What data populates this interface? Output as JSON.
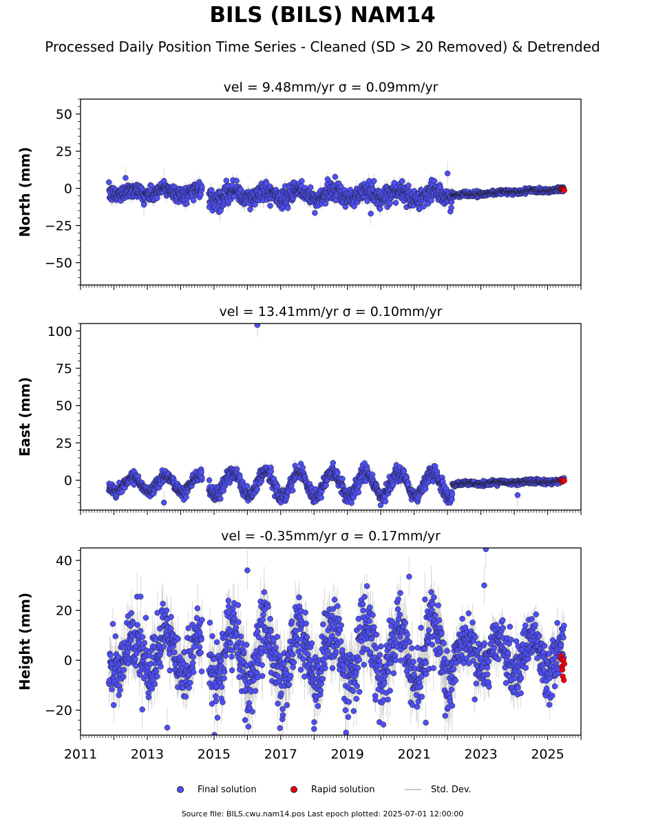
{
  "title": "BILS (BILS) NAM14",
  "subtitle": "Processed Daily Position Time Series - Cleaned (SD > 20 Removed) & Detrended",
  "footer": "Source file: BILS.cwu.nam14.pos  Last epoch plotted: 2025-07-01 12:00:00",
  "legend": {
    "final_label": "Final solution",
    "rapid_label": "Rapid solution",
    "std_label": "Std. Dev."
  },
  "colors": {
    "final": "#4f4ff5",
    "rapid": "#e8000b",
    "std": "#b8b8b8",
    "edge": "#1a1a1a"
  },
  "chart_data": [
    {
      "type": "scatter",
      "panel": "north",
      "title": "vel = 9.48mm/yr   σ = 0.09mm/yr",
      "ylabel": "North (mm)",
      "xlim": [
        2011,
        2026
      ],
      "ylim": [
        -65,
        60
      ],
      "yticks": [
        -50,
        -25,
        0,
        25,
        50
      ],
      "ytick_labels": [
        "−50",
        "−25",
        "0",
        "25",
        "50"
      ],
      "segments": [
        {
          "start": 2011.85,
          "end": 2014.65,
          "mean": -2.5,
          "amp": 2,
          "noise": 2.6,
          "sd": 3
        },
        {
          "start": 2014.85,
          "end": 2022.15,
          "mean": -4.5,
          "amp": 3,
          "noise": 3.2,
          "sd": 3.5
        },
        {
          "start": 2022.15,
          "end": 2025.5,
          "mean": -4.5,
          "amp": 0.5,
          "noise": 0.9,
          "sd": 1.2,
          "trend_end": -0.5
        }
      ],
      "outliers": [
        {
          "x": 2012.35,
          "y": 7
        },
        {
          "x": 2013.5,
          "y": 5
        },
        {
          "x": 2022.0,
          "y": 10
        },
        {
          "x": 2012.9,
          "y": -11
        },
        {
          "x": 2015.2,
          "y": -15
        },
        {
          "x": 2019.7,
          "y": -17
        }
      ],
      "rapid": {
        "start": 2025.4,
        "end": 2025.5,
        "y": -0.7,
        "spread": 0.8
      }
    },
    {
      "type": "scatter",
      "panel": "east",
      "title": "vel = 13.41mm/yr   σ = 0.10mm/yr",
      "ylabel": "East (mm)",
      "xlim": [
        2011,
        2026
      ],
      "ylim": [
        -20,
        105
      ],
      "yticks": [
        0,
        25,
        50,
        75,
        100
      ],
      "ytick_labels": [
        "0",
        "25",
        "50",
        "75",
        "100"
      ],
      "segments": [
        {
          "start": 2011.85,
          "end": 2014.65,
          "mean": -2.5,
          "amp": 5,
          "noise": 2.2,
          "sd": 2.5
        },
        {
          "start": 2014.85,
          "end": 2022.15,
          "mean": -2.5,
          "amp": 8,
          "noise": 2.4,
          "sd": 3
        },
        {
          "start": 2022.15,
          "end": 2025.5,
          "mean": -2.5,
          "amp": 0.4,
          "noise": 0.8,
          "sd": 1,
          "trend_end": -0.5
        }
      ],
      "outliers": [
        {
          "x": 2016.3,
          "y": 104
        },
        {
          "x": 2024.1,
          "y": -10
        },
        {
          "x": 2013.5,
          "y": -15
        }
      ],
      "rapid": {
        "start": 2025.4,
        "end": 2025.5,
        "y": -0.5,
        "spread": 0.6
      }
    },
    {
      "type": "scatter",
      "panel": "height",
      "title": "vel = -0.35mm/yr   σ = 0.17mm/yr",
      "ylabel": "Height (mm)",
      "xlim": [
        2011,
        2026
      ],
      "ylim": [
        -30,
        45
      ],
      "xticks": [
        2011,
        2013,
        2015,
        2017,
        2019,
        2021,
        2023,
        2025
      ],
      "xtick_labels": [
        "2011",
        "2013",
        "2015",
        "2017",
        "2019",
        "2021",
        "2023",
        "2025"
      ],
      "yticks": [
        -20,
        0,
        20,
        40
      ],
      "ytick_labels": [
        "−20",
        "0",
        "20",
        "40"
      ],
      "segments": [
        {
          "start": 2011.85,
          "end": 2014.65,
          "mean": 2,
          "amp": 8,
          "noise": 6,
          "sd": 6
        },
        {
          "start": 2014.85,
          "end": 2022.15,
          "mean": 2,
          "amp": 11,
          "noise": 7,
          "sd": 7
        },
        {
          "start": 2022.15,
          "end": 2025.5,
          "mean": 2,
          "amp": 6,
          "noise": 5,
          "sd": 5
        }
      ],
      "outliers": [
        {
          "x": 2016.0,
          "y": 36
        },
        {
          "x": 2023.15,
          "y": 44.5
        },
        {
          "x": 2023.1,
          "y": 30
        },
        {
          "x": 2020.85,
          "y": 33.5
        },
        {
          "x": 2012.8,
          "y": 25.5
        },
        {
          "x": 2018.0,
          "y": -27.5
        },
        {
          "x": 2013.6,
          "y": -27
        },
        {
          "x": 2021.35,
          "y": -25
        }
      ],
      "rapid": {
        "start": 2025.4,
        "end": 2025.5,
        "y": -2.5,
        "spread": 6
      }
    }
  ]
}
